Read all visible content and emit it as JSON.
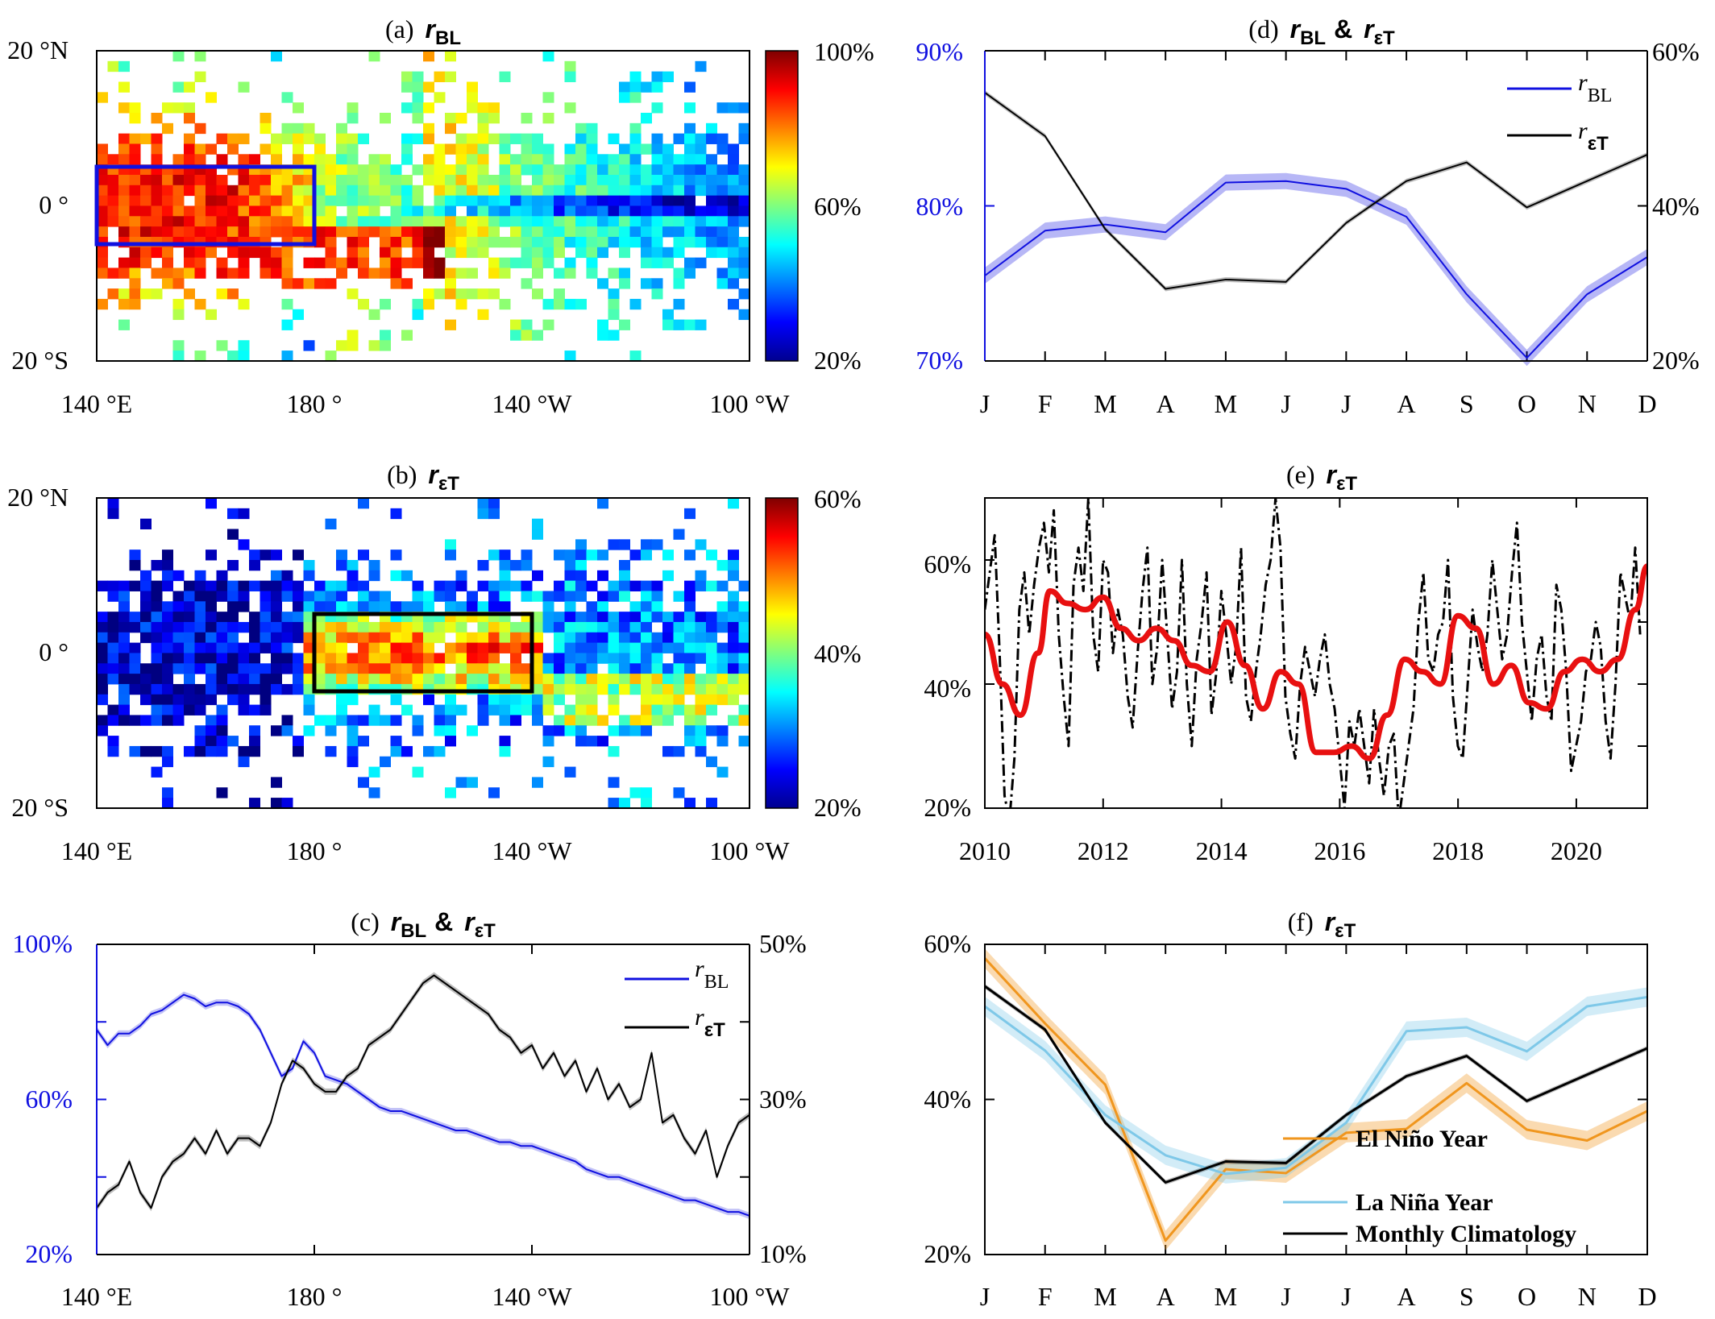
{
  "colors": {
    "blue": "#1010e0",
    "black": "#000000",
    "red": "#e81010",
    "orange": "#f0961e",
    "lightblue": "#7ec8e8"
  },
  "panels": {
    "a": {
      "label": "(a)",
      "var": "r",
      "sub": "BL",
      "xticks": [
        "140 °E",
        "180 °",
        "140 °W",
        "100 °W"
      ],
      "yticks": [
        "20 °N",
        "0 °",
        "20 °S"
      ],
      "cbar": [
        "100%",
        "60%",
        "20%"
      ]
    },
    "b": {
      "label": "(b)",
      "var": "r",
      "sub": "εT",
      "xticks": [
        "140 °E",
        "180 °",
        "140 °W",
        "100 °W"
      ],
      "yticks": [
        "20 °N",
        "0 °",
        "20 °S"
      ],
      "cbar": [
        "60%",
        "40%",
        "20%"
      ]
    },
    "c": {
      "label": "(c)",
      "var1": "r",
      "sub1": "BL",
      "amp": "&",
      "var2": "r",
      "sub2": "εT",
      "yleft": [
        "100%",
        "60%",
        "20%"
      ],
      "yright": [
        "50%",
        "30%",
        "10%"
      ],
      "xticks": [
        "140 °E",
        "180 °",
        "140 °W",
        "100 °W"
      ],
      "legend": [
        {
          "var": "r",
          "sub": "BL"
        },
        {
          "var": "r",
          "sub": "εT"
        }
      ]
    },
    "d": {
      "label": "(d)",
      "var1": "r",
      "sub1": "BL",
      "amp": "&",
      "var2": "r",
      "sub2": "εT",
      "yleft": [
        "90%",
        "80%",
        "70%"
      ],
      "yright": [
        "60%",
        "40%",
        "20%"
      ],
      "legend": [
        {
          "var": "r",
          "sub": "BL"
        },
        {
          "var": "r",
          "sub": "εT"
        }
      ]
    },
    "e": {
      "label": "(e)",
      "var": "r",
      "sub": "εT",
      "yticks": [
        "60%",
        "40%",
        "20%"
      ],
      "xticks": [
        "2010",
        "2012",
        "2014",
        "2016",
        "2018",
        "2020"
      ]
    },
    "f": {
      "label": "(f)",
      "var": "r",
      "sub": "εT",
      "yticks": [
        "60%",
        "40%",
        "20%"
      ],
      "legend": [
        "El Niño Year",
        "La Niña Year",
        "Monthly Climatology"
      ]
    }
  },
  "months": [
    "J",
    "F",
    "M",
    "A",
    "M",
    "J",
    "J",
    "A",
    "S",
    "O",
    "N",
    "D"
  ],
  "chart_data": [
    {
      "panel": "a",
      "type": "heatmap",
      "x_range": [
        140,
        260
      ],
      "y_range": [
        -20,
        20
      ],
      "colorbar_range": [
        20,
        100
      ],
      "box": {
        "lon": [
          140,
          180
        ],
        "lat": [
          -5,
          5
        ]
      }
    },
    {
      "panel": "b",
      "type": "heatmap",
      "x_range": [
        140,
        260
      ],
      "y_range": [
        -20,
        20
      ],
      "colorbar_range": [
        20,
        60
      ],
      "box": {
        "lon": [
          180,
          220
        ],
        "lat": [
          -5,
          5
        ]
      }
    },
    {
      "panel": "c",
      "type": "line",
      "x_range": [
        140,
        260
      ],
      "ylim_left": [
        20,
        100
      ],
      "ylim_right": [
        10,
        50
      ],
      "x": [
        140,
        142,
        144,
        146,
        148,
        150,
        152,
        154,
        156,
        158,
        160,
        162,
        164,
        166,
        168,
        170,
        172,
        174,
        176,
        178,
        180,
        182,
        184,
        186,
        188,
        190,
        192,
        194,
        196,
        198,
        200,
        202,
        204,
        206,
        208,
        210,
        212,
        214,
        216,
        218,
        220,
        222,
        224,
        226,
        228,
        230,
        232,
        234,
        236,
        238,
        240,
        242,
        244,
        246,
        248,
        250,
        252,
        254,
        256,
        258,
        260
      ],
      "series": [
        {
          "name": "rBL",
          "axis": "left",
          "values": [
            78,
            74,
            77,
            77,
            79,
            82,
            83,
            85,
            87,
            86,
            84,
            85,
            85,
            84,
            82,
            78,
            72,
            66,
            68,
            75,
            72,
            66,
            65,
            64,
            62,
            60,
            58,
            57,
            57,
            56,
            55,
            54,
            53,
            52,
            52,
            51,
            50,
            49,
            49,
            48,
            48,
            47,
            46,
            45,
            44,
            42,
            41,
            40,
            40,
            39,
            38,
            37,
            36,
            35,
            34,
            34,
            33,
            32,
            31,
            31,
            30
          ]
        },
        {
          "name": "rεT",
          "axis": "right",
          "values": [
            16,
            18,
            19,
            22,
            18,
            16,
            20,
            22,
            23,
            25,
            23,
            26,
            23,
            25,
            25,
            24,
            27,
            32,
            35,
            34,
            32,
            31,
            31,
            33,
            34,
            37,
            38,
            39,
            41,
            43,
            45,
            46,
            45,
            44,
            43,
            42,
            41,
            39,
            38,
            36,
            37,
            34,
            36,
            33,
            35,
            31,
            34,
            30,
            32,
            29,
            30,
            36,
            27,
            28,
            25,
            23,
            26,
            20,
            24,
            27,
            28
          ]
        }
      ]
    },
    {
      "panel": "d",
      "type": "line",
      "categories": [
        "J",
        "F",
        "M",
        "A",
        "M",
        "J",
        "J",
        "A",
        "S",
        "O",
        "N",
        "D"
      ],
      "ylim_left": [
        70,
        90
      ],
      "ylim_right": [
        20,
        60
      ],
      "series": [
        {
          "name": "rBL",
          "axis": "left",
          "values": [
            75.5,
            78.4,
            78.8,
            78.3,
            81.5,
            81.6,
            81.1,
            79.3,
            74.3,
            70.2,
            74.3,
            76.7
          ]
        },
        {
          "name": "rεT",
          "axis": "right",
          "values": [
            54.6,
            49.0,
            37.0,
            29.3,
            30.5,
            30.2,
            37.8,
            43.2,
            45.6,
            39.8,
            43.2,
            46.6
          ]
        }
      ]
    },
    {
      "panel": "e",
      "type": "line",
      "xlim": [
        2010,
        2021.2
      ],
      "ylim": [
        20,
        70
      ],
      "series": [
        {
          "name": "monthly",
          "x_start": 2010,
          "x_step": 0.0833,
          "values": [
            52,
            58,
            64,
            45,
            22,
            18,
            28,
            52,
            58,
            48,
            56,
            62,
            66,
            58,
            68,
            48,
            38,
            30,
            56,
            62,
            55,
            70,
            48,
            42,
            60,
            58,
            45,
            52,
            48,
            38,
            33,
            45,
            55,
            62,
            40,
            46,
            60,
            48,
            36,
            42,
            60,
            40,
            30,
            44,
            50,
            58,
            35,
            42,
            55,
            48,
            40,
            46,
            62,
            38,
            34,
            42,
            48,
            56,
            60,
            70,
            62,
            38,
            32,
            28,
            40,
            46,
            42,
            38,
            44,
            48,
            40,
            36,
            28,
            20,
            34,
            30,
            36,
            30,
            24,
            36,
            28,
            22,
            30,
            32,
            18,
            24,
            30,
            36,
            50,
            58,
            44,
            42,
            48,
            50,
            60,
            38,
            30,
            28,
            40,
            52,
            46,
            42,
            48,
            60,
            52,
            44,
            48,
            58,
            66,
            50,
            42,
            34,
            44,
            48,
            38,
            34,
            56,
            52,
            42,
            26,
            30,
            34,
            42,
            44,
            50,
            46,
            34,
            28,
            40,
            58,
            54,
            50,
            62,
            48
          ]
        },
        {
          "name": "smoothed",
          "x": [
            2010,
            2010.3,
            2010.6,
            2010.9,
            2011.1,
            2011.4,
            2011.7,
            2012,
            2012.3,
            2012.6,
            2012.9,
            2013.2,
            2013.5,
            2013.8,
            2014.1,
            2014.4,
            2014.7,
            2015,
            2015.3,
            2015.6,
            2015.9,
            2016.2,
            2016.5,
            2016.8,
            2017.1,
            2017.4,
            2017.7,
            2018,
            2018.3,
            2018.6,
            2018.9,
            2019.2,
            2019.5,
            2019.8,
            2020.1,
            2020.4,
            2020.7,
            2021,
            2021.2
          ],
          "values": [
            48,
            40,
            35,
            45,
            55,
            53,
            52,
            54,
            49,
            47,
            49,
            47,
            43,
            42,
            50,
            43,
            36,
            42,
            40,
            29,
            29,
            30,
            28,
            35,
            44,
            42,
            40,
            51,
            49,
            40,
            43,
            37,
            36,
            42,
            44,
            42,
            44,
            52,
            59
          ]
        }
      ]
    },
    {
      "panel": "f",
      "type": "line",
      "categories": [
        "J",
        "F",
        "M",
        "A",
        "M",
        "J",
        "J",
        "A",
        "S",
        "O",
        "N",
        "D"
      ],
      "ylim": [
        20,
        60
      ],
      "series": [
        {
          "name": "El Niño Year",
          "values": [
            58.2,
            49.8,
            41.9,
            21.8,
            31.0,
            30.5,
            35.7,
            36.2,
            42.1,
            36.1,
            34.7,
            38.5
          ]
        },
        {
          "name": "La Niña Year",
          "values": [
            52.0,
            46.3,
            38.0,
            32.8,
            30.4,
            31.2,
            37.0,
            48.8,
            49.3,
            46.2,
            52.0,
            53.2
          ]
        },
        {
          "name": "Monthly Climatology",
          "values": [
            54.6,
            49.0,
            37.0,
            29.3,
            32.0,
            31.8,
            38.0,
            43.0,
            45.6,
            39.8,
            43.2,
            46.6
          ]
        }
      ]
    }
  ]
}
